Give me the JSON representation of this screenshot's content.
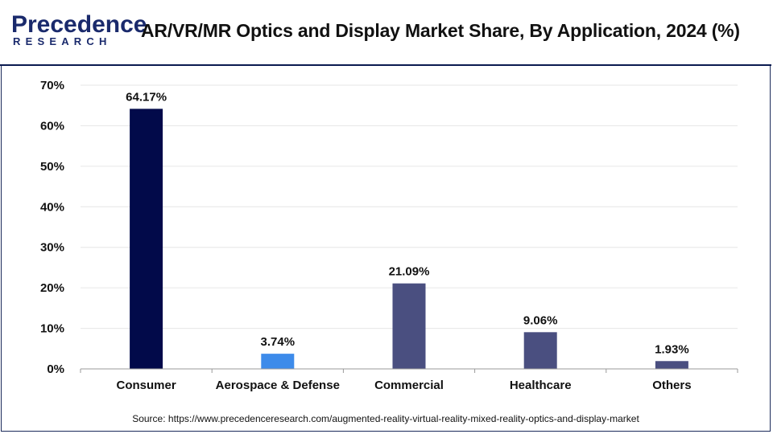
{
  "brand": {
    "name": "Precedence",
    "sub": "RESEARCH"
  },
  "colors": {
    "navy": "#020a4a",
    "sky": "#3d8bea",
    "slate": "#4a4f80",
    "grid": "#e6e6e6",
    "axis": "#9a9a9a"
  },
  "chart_data": {
    "type": "bar",
    "title": "AR/VR/MR Optics and Display Market Share, By Application, 2024 (%)",
    "xlabel": "",
    "ylabel": "",
    "categories": [
      "Consumer",
      "Aerospace & Defense",
      "Commercial",
      "Healthcare",
      "Others"
    ],
    "values": [
      64.17,
      3.74,
      21.09,
      9.06,
      1.93
    ],
    "data_labels": [
      "64.17%",
      "3.74%",
      "21.09%",
      "9.06%",
      "1.93%"
    ],
    "bar_colors": [
      "#020a4a",
      "#3d8bea",
      "#4a4f80",
      "#4a4f80",
      "#4a4f80"
    ],
    "ylim": [
      0,
      70
    ],
    "yticks": [
      0,
      10,
      20,
      30,
      40,
      50,
      60,
      70
    ],
    "ytick_labels": [
      "0%",
      "10%",
      "20%",
      "30%",
      "40%",
      "50%",
      "60%",
      "70%"
    ],
    "grid": true,
    "legend": "none"
  },
  "source": "Source: https://www.precedenceresearch.com/augmented-reality-virtual-reality-mixed-reality-optics-and-display-market"
}
